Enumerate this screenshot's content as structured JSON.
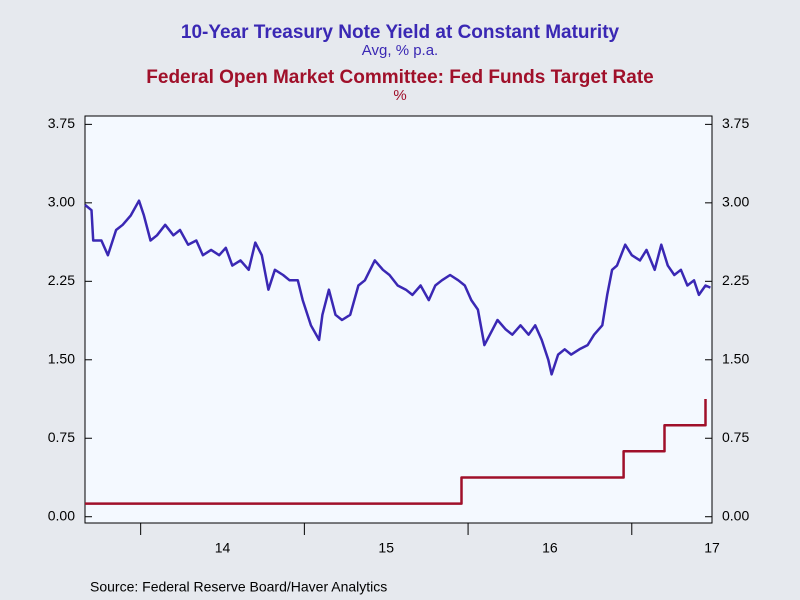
{
  "chart_data": {
    "type": "line",
    "title": "10-Year Treasury Note Yield at Constant Maturity",
    "subtitle": "Avg, % p.a.",
    "title2": "Federal Open Market Committee: Fed Funds Target Rate",
    "subtitle2": "%",
    "source": "Source:  Federal Reserve Board/Haver Analytics",
    "xlim": [
      2013.66,
      2017.49
    ],
    "xticks": [
      {
        "value": 2014,
        "label": "14"
      },
      {
        "value": 2015,
        "label": "15"
      },
      {
        "value": 2016,
        "label": "16"
      },
      {
        "value": 2017,
        "label": "17"
      }
    ],
    "ylim": [
      -0.06,
      3.83
    ],
    "yticks": [
      {
        "value": 0,
        "label": "0.00"
      },
      {
        "value": 0.75,
        "label": "0.75"
      },
      {
        "value": 1.5,
        "label": "1.50"
      },
      {
        "value": 2.25,
        "label": "2.25"
      },
      {
        "value": 3,
        "label": "3.00"
      },
      {
        "value": 3.75,
        "label": "3.75"
      }
    ],
    "y2lim": [
      -0.06,
      3.83
    ],
    "y2ticks": [
      {
        "value": 0,
        "label": "0.00"
      },
      {
        "value": 0.75,
        "label": "0.75"
      },
      {
        "value": 1.5,
        "label": "1.50"
      },
      {
        "value": 2.25,
        "label": "2.25"
      },
      {
        "value": 3,
        "label": "3.00"
      },
      {
        "value": 3.75,
        "label": "3.75"
      }
    ],
    "series": [
      {
        "name": "10-Year Treasury Note Yield at Constant Maturity",
        "color": "#3a28b4",
        "x": [
          2013.66,
          2013.7,
          2013.71,
          2013.76,
          2013.8,
          2013.85,
          2013.89,
          2013.94,
          2013.99,
          2014.02,
          2014.06,
          2014.1,
          2014.15,
          2014.2,
          2014.24,
          2014.29,
          2014.34,
          2014.38,
          2014.43,
          2014.48,
          2014.52,
          2014.56,
          2014.61,
          2014.66,
          2014.7,
          2014.74,
          2014.78,
          2014.82,
          2014.87,
          2014.91,
          2014.96,
          2014.99,
          2015.04,
          2015.09,
          2015.11,
          2015.15,
          2015.19,
          2015.23,
          2015.28,
          2015.33,
          2015.37,
          2015.43,
          2015.48,
          2015.52,
          2015.57,
          2015.62,
          2015.66,
          2015.71,
          2015.76,
          2015.8,
          2015.84,
          2015.89,
          2015.94,
          2015.98,
          2016.02,
          2016.06,
          2016.1,
          2016.15,
          2016.18,
          2016.23,
          2016.27,
          2016.32,
          2016.37,
          2016.41,
          2016.45,
          2016.49,
          2016.51,
          2016.55,
          2016.59,
          2016.63,
          2016.68,
          2016.73,
          2016.77,
          2016.82,
          2016.85,
          2016.88,
          2016.91,
          2016.96,
          2017.0,
          2017.05,
          2017.09,
          2017.14,
          2017.18,
          2017.22,
          2017.26,
          2017.3,
          2017.34,
          2017.38,
          2017.41,
          2017.45,
          2017.48
        ],
        "values": [
          2.98,
          2.93,
          2.64,
          2.64,
          2.5,
          2.74,
          2.79,
          2.88,
          3.02,
          2.88,
          2.64,
          2.69,
          2.79,
          2.69,
          2.74,
          2.6,
          2.64,
          2.5,
          2.55,
          2.5,
          2.57,
          2.4,
          2.45,
          2.36,
          2.62,
          2.5,
          2.17,
          2.36,
          2.31,
          2.26,
          2.26,
          2.07,
          1.83,
          1.69,
          1.93,
          2.17,
          1.93,
          1.88,
          1.93,
          2.21,
          2.26,
          2.45,
          2.36,
          2.31,
          2.21,
          2.17,
          2.12,
          2.21,
          2.07,
          2.21,
          2.26,
          2.31,
          2.26,
          2.21,
          2.07,
          1.98,
          1.64,
          1.79,
          1.88,
          1.79,
          1.74,
          1.83,
          1.74,
          1.83,
          1.69,
          1.5,
          1.36,
          1.55,
          1.6,
          1.55,
          1.6,
          1.64,
          1.74,
          1.83,
          2.12,
          2.36,
          2.4,
          2.6,
          2.5,
          2.45,
          2.55,
          2.36,
          2.6,
          2.4,
          2.31,
          2.36,
          2.21,
          2.26,
          2.12,
          2.21,
          2.19
        ]
      },
      {
        "name": "Federal Open Market Committee: Fed Funds Target Rate",
        "color": "#a0102a",
        "axis": "y2",
        "x": [
          2013.66,
          2015.96,
          2015.96,
          2016.95,
          2016.95,
          2017.2,
          2017.2,
          2017.45,
          2017.45
        ],
        "values": [
          0.125,
          0.125,
          0.375,
          0.375,
          0.625,
          0.625,
          0.875,
          0.875,
          1.125
        ]
      }
    ]
  }
}
